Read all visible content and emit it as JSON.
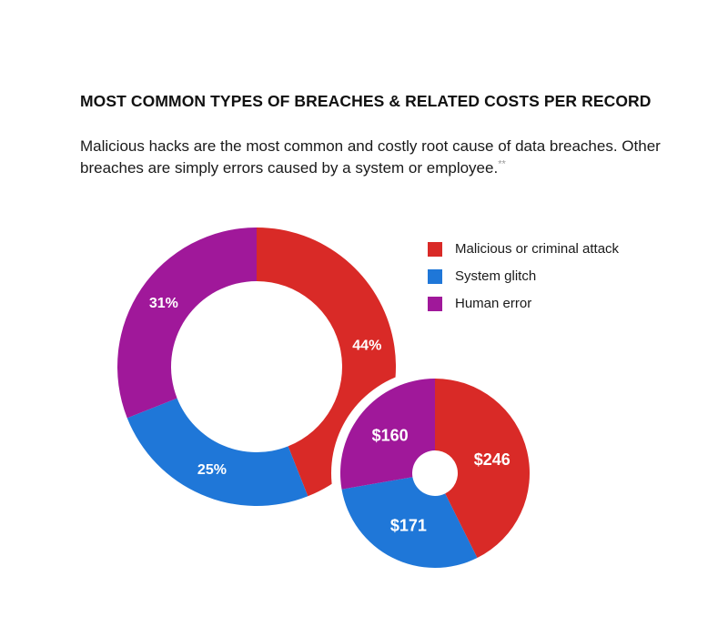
{
  "title": "MOST COMMON TYPES OF BREACHES & RELATED COSTS PER RECORD",
  "subtitle": "Malicious hacks are the most common and costly root cause of data breaches. Other breaches are simply errors caused by a system or employee.",
  "footnote_mark": "**",
  "colors": {
    "malicious": "#d92a27",
    "system": "#1f77d8",
    "human": "#a0189a"
  },
  "legend": [
    {
      "label": "Malicious or criminal attack",
      "color": "#d92a27"
    },
    {
      "label": "System glitch",
      "color": "#1f77d8"
    },
    {
      "label": "Human error",
      "color": "#a0189a"
    }
  ],
  "chart_data": [
    {
      "type": "pie",
      "variant": "donut",
      "categories": [
        "Malicious or criminal attack",
        "System glitch",
        "Human error"
      ],
      "values": [
        44,
        25,
        31
      ],
      "labels": [
        "44%",
        "25%",
        "31%"
      ],
      "colors": [
        "#d92a27",
        "#1f77d8",
        "#a0189a"
      ]
    },
    {
      "type": "pie",
      "variant": "donut",
      "categories": [
        "Malicious or criminal attack",
        "System glitch",
        "Human error"
      ],
      "values": [
        246,
        171,
        160
      ],
      "labels": [
        "$246",
        "$171",
        "$160"
      ],
      "colors": [
        "#d92a27",
        "#1f77d8",
        "#a0189a"
      ]
    }
  ]
}
